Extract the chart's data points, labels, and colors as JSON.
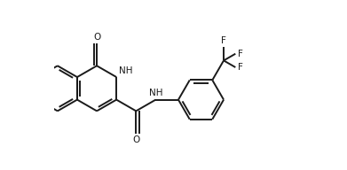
{
  "bg_color": "#ffffff",
  "line_color": "#1a1a1a",
  "text_color": "#1a1a1a",
  "lw": 1.4,
  "fs": 7.5,
  "figsize": [
    3.91,
    1.92
  ],
  "dpi": 100,
  "xlim": [
    -1.0,
    9.5
  ],
  "ylim": [
    -3.5,
    3.8
  ]
}
